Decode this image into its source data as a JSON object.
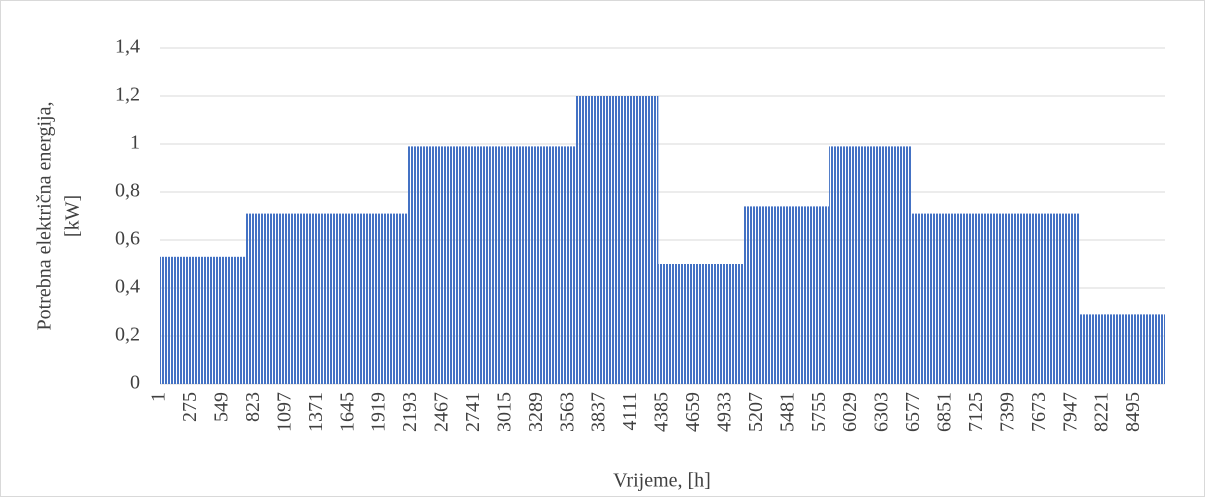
{
  "chart_data": {
    "type": "histogram",
    "y_label": [
      "Potrebna električna energija,",
      "[kW]"
    ],
    "x_label": "Vrijeme, [h]",
    "bins": [
      0,
      744,
      1416,
      2160,
      2880,
      3624,
      4344,
      5088,
      5832,
      6552,
      7296,
      8016,
      8760
    ],
    "values": [
      0.53,
      0.71,
      0.71,
      0.99,
      0.99,
      1.2,
      0.5,
      0.74,
      0.99,
      0.71,
      0.71,
      0.29
    ],
    "color": "#4472c4",
    "xlim": [
      0,
      8760
    ],
    "xticks": [
      1,
      275,
      549,
      823,
      1097,
      1371,
      1645,
      1919,
      2193,
      2467,
      2741,
      3015,
      3289,
      3563,
      3837,
      4111,
      4385,
      4659,
      4933,
      5207,
      5481,
      5755,
      6029,
      6303,
      6577,
      6851,
      7125,
      7399,
      7673,
      7947,
      8221,
      8495
    ],
    "ylim": [
      0,
      1.4
    ],
    "yticks": [
      0,
      {
        "value": 0.2,
        "label": "0,2"
      },
      {
        "value": 0.4,
        "label": "0,4"
      },
      {
        "value": 0.6,
        "label": "0,6"
      },
      {
        "value": 0.8,
        "label": "0,8"
      },
      1,
      {
        "value": 1.2,
        "label": "1,2"
      },
      {
        "value": 1.4,
        "label": "1,4"
      }
    ],
    "grid": true
  }
}
